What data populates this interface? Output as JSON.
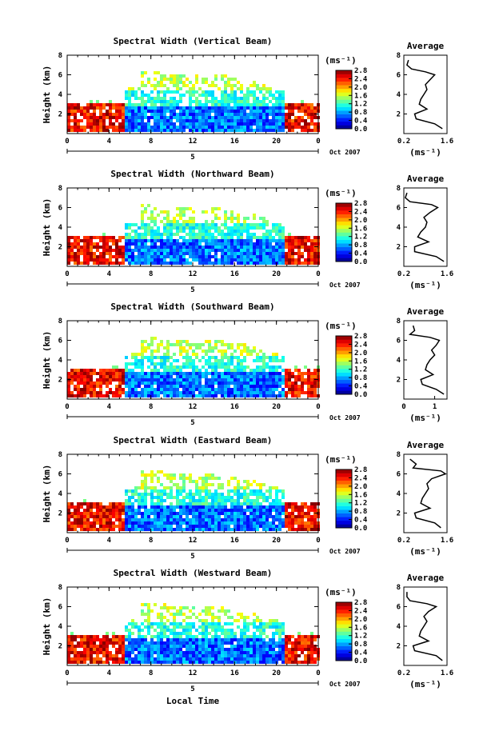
{
  "xlabel": "Local Time",
  "chart_data": [
    {
      "type": "heatmap",
      "title": "Spectral Width (Vertical Beam)",
      "ylabel": "Height (km)",
      "xlim": [
        0,
        24
      ],
      "ylim": [
        0,
        8
      ],
      "xticks": [
        "0",
        "4",
        "8",
        "12",
        "16",
        "20",
        "0"
      ],
      "yticks": [
        "2",
        "4",
        "6",
        "8"
      ],
      "day_label": "5",
      "date_label": "Oct 2007",
      "colorbar": {
        "unit": "(ms⁻¹)",
        "labels": [
          "0.0",
          "0.4",
          "0.8",
          "1.2",
          "1.6",
          "2.0",
          "2.4",
          "2.8"
        ],
        "range": [
          0,
          2.8
        ]
      },
      "average": {
        "title": "Average",
        "xlim": [
          0.2,
          1.6
        ],
        "xticks": [
          "0.2",
          "1.6"
        ],
        "xlabel": "(ms⁻¹)",
        "yticks": [
          "2",
          "4",
          "6",
          "8"
        ],
        "heights": [
          0.5,
          1.0,
          1.5,
          2.0,
          2.5,
          3.0,
          3.5,
          4.0,
          4.5,
          5.0,
          5.5,
          6.0,
          6.3,
          6.6,
          7.0,
          7.5
        ],
        "values": [
          1.45,
          1.2,
          0.6,
          0.55,
          0.95,
          0.7,
          0.75,
          0.85,
          0.95,
          0.9,
          1.05,
          1.2,
          0.9,
          0.45,
          0.3,
          0.35
        ]
      }
    },
    {
      "type": "heatmap",
      "title": "Spectral Width (Northward Beam)",
      "ylabel": "Height (km)",
      "xlim": [
        0,
        24
      ],
      "ylim": [
        0,
        8
      ],
      "xticks": [
        "0",
        "4",
        "8",
        "12",
        "16",
        "20",
        "0"
      ],
      "yticks": [
        "2",
        "4",
        "6",
        "8"
      ],
      "day_label": "5",
      "date_label": "Oct 2007",
      "colorbar": {
        "unit": "(ms⁻¹)",
        "labels": [
          "0.0",
          "0.4",
          "0.8",
          "1.2",
          "1.6",
          "2.0",
          "2.4",
          "2.8"
        ],
        "range": [
          0,
          2.8
        ]
      },
      "average": {
        "title": "Average",
        "xlim": [
          0.2,
          1.6
        ],
        "xticks": [
          "0.2",
          "1.6"
        ],
        "xlabel": "(ms⁻¹)",
        "yticks": [
          "2",
          "4",
          "6",
          "8"
        ],
        "heights": [
          0.5,
          1.0,
          1.5,
          2.0,
          2.5,
          3.0,
          3.5,
          4.0,
          4.5,
          5.0,
          5.5,
          6.0,
          6.3,
          6.6,
          7.0,
          7.5
        ],
        "values": [
          1.5,
          1.25,
          0.55,
          0.55,
          1.0,
          0.65,
          0.75,
          0.9,
          0.95,
          0.85,
          1.05,
          1.3,
          1.1,
          0.4,
          0.25,
          0.3
        ]
      }
    },
    {
      "type": "heatmap",
      "title": "Spectral Width (Southward Beam)",
      "ylabel": "Height (km)",
      "xlim": [
        0,
        24
      ],
      "ylim": [
        0,
        8
      ],
      "xticks": [
        "0",
        "4",
        "8",
        "12",
        "16",
        "20",
        "0"
      ],
      "yticks": [
        "2",
        "4",
        "6",
        "8"
      ],
      "day_label": "5",
      "date_label": "Oct 2007",
      "colorbar": {
        "unit": "(ms⁻¹)",
        "labels": [
          "0.0",
          "0.4",
          "0.8",
          "1.2",
          "1.6",
          "2.0",
          "2.4",
          "2.8"
        ],
        "range": [
          0,
          2.8
        ]
      },
      "average": {
        "title": "Average",
        "xlim": [
          0,
          1.4
        ],
        "xticks": [
          "0",
          "1"
        ],
        "xlabel": "(ms⁻¹)",
        "yticks": [
          "2",
          "4",
          "6",
          "8"
        ],
        "heights": [
          0.5,
          1.0,
          1.5,
          2.0,
          2.5,
          3.0,
          3.5,
          4.0,
          4.5,
          5.0,
          5.5,
          6.0,
          6.3,
          6.6,
          7.0,
          7.5
        ],
        "values": [
          1.3,
          1.05,
          0.6,
          0.55,
          0.95,
          0.7,
          0.75,
          0.85,
          1.0,
          0.9,
          1.05,
          1.15,
          0.85,
          0.2,
          0.35,
          0.3
        ]
      }
    },
    {
      "type": "heatmap",
      "title": "Spectral Width (Eastward Beam)",
      "ylabel": "Height (km)",
      "xlim": [
        0,
        24
      ],
      "ylim": [
        0,
        8
      ],
      "xticks": [
        "0",
        "4",
        "8",
        "12",
        "16",
        "20",
        "0"
      ],
      "yticks": [
        "2",
        "4",
        "6",
        "8"
      ],
      "day_label": "5",
      "date_label": "Oct 2007",
      "colorbar": {
        "unit": "(ms⁻¹)",
        "labels": [
          "0.0",
          "0.4",
          "0.8",
          "1.2",
          "1.6",
          "2.0",
          "2.4",
          "2.8"
        ],
        "range": [
          0,
          2.8
        ]
      },
      "average": {
        "title": "Average",
        "xlim": [
          0.2,
          1.6
        ],
        "xticks": [
          "0.2",
          "1.6"
        ],
        "xlabel": "(ms⁻¹)",
        "yticks": [
          "2",
          "4",
          "6",
          "8"
        ],
        "heights": [
          0.5,
          1.0,
          1.5,
          2.0,
          2.5,
          3.0,
          3.5,
          4.0,
          4.5,
          5.0,
          5.5,
          6.0,
          6.3,
          6.6,
          7.0,
          7.5
        ],
        "values": [
          1.4,
          1.2,
          0.6,
          0.55,
          1.05,
          0.75,
          0.8,
          0.9,
          1.0,
          0.95,
          1.1,
          1.55,
          1.4,
          0.5,
          0.6,
          0.4
        ]
      }
    },
    {
      "type": "heatmap",
      "title": "Spectral Width (Westward Beam)",
      "ylabel": "Height (km)",
      "xlim": [
        0,
        24
      ],
      "ylim": [
        0,
        8
      ],
      "xticks": [
        "0",
        "4",
        "8",
        "12",
        "16",
        "20",
        "0"
      ],
      "yticks": [
        "2",
        "4",
        "6",
        "8"
      ],
      "day_label": "5",
      "date_label": "Oct 2007",
      "colorbar": {
        "unit": "(ms⁻¹)",
        "labels": [
          "0.0",
          "0.4",
          "0.8",
          "1.2",
          "1.6",
          "2.0",
          "2.4",
          "2.8"
        ],
        "range": [
          0,
          2.8
        ]
      },
      "average": {
        "title": "Average",
        "xlim": [
          0.2,
          1.6
        ],
        "xticks": [
          "0.2",
          "1.6"
        ],
        "xlabel": "(ms⁻¹)",
        "yticks": [
          "2",
          "4",
          "6",
          "8"
        ],
        "heights": [
          0.5,
          1.0,
          1.5,
          2.0,
          2.5,
          3.0,
          3.5,
          4.0,
          4.5,
          5.0,
          5.5,
          6.0,
          6.3,
          6.6,
          7.0,
          7.5
        ],
        "values": [
          1.45,
          1.25,
          0.55,
          0.5,
          1.0,
          0.7,
          0.75,
          0.85,
          0.95,
          0.85,
          1.0,
          1.25,
          0.95,
          0.4,
          0.3,
          0.3
        ]
      }
    }
  ]
}
